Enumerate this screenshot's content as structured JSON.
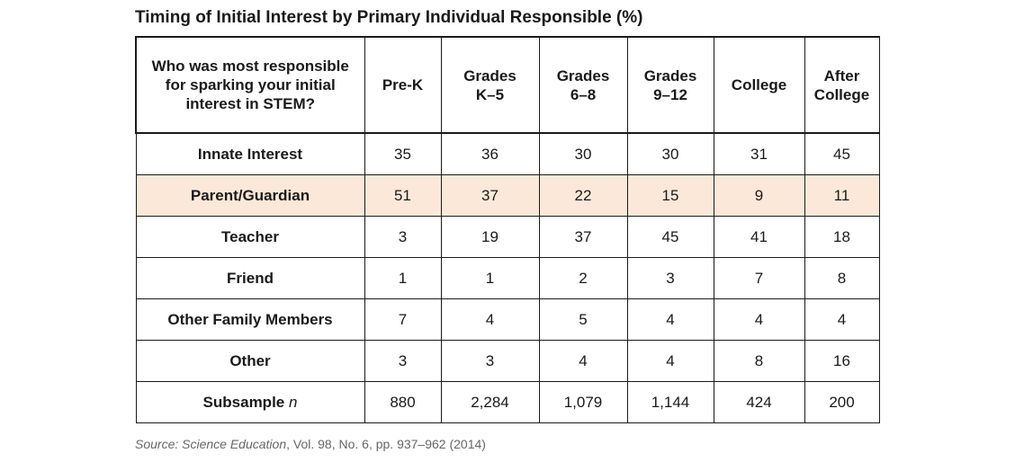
{
  "title": "Timing of Initial Interest by Primary Individual Responsible (%)",
  "colors": {
    "highlight_row": "#fce8d8",
    "border": "#1a1a1a"
  },
  "chart_data": {
    "type": "table",
    "title": "Timing of Initial Interest by Primary Individual Responsible (%)",
    "row_header": "Who was most responsible for sparking your initial interest in STEM?",
    "columns": [
      "Pre-K",
      "Grades\nK–5",
      "Grades\n6–8",
      "Grades\n9–12",
      "College",
      "After\nCollege"
    ],
    "highlighted_row": "Parent/Guardian",
    "rows": [
      {
        "label": "Innate Interest",
        "values": [
          "35",
          "36",
          "30",
          "30",
          "31",
          "45"
        ]
      },
      {
        "label": "Parent/Guardian",
        "values": [
          "51",
          "37",
          "22",
          "15",
          "9",
          "11"
        ]
      },
      {
        "label": "Teacher",
        "values": [
          "3",
          "19",
          "37",
          "45",
          "41",
          "18"
        ]
      },
      {
        "label": "Friend",
        "values": [
          "1",
          "1",
          "2",
          "3",
          "7",
          "8"
        ]
      },
      {
        "label": "Other Family Members",
        "values": [
          "7",
          "4",
          "5",
          "4",
          "4",
          "4"
        ]
      },
      {
        "label": "Other",
        "values": [
          "3",
          "3",
          "4",
          "4",
          "8",
          "16"
        ]
      }
    ],
    "subsample": {
      "label_prefix": "Subsample ",
      "label_italic": "n",
      "values": [
        "880",
        "2,284",
        "1,079",
        "1,144",
        "424",
        "200"
      ]
    }
  },
  "source": {
    "prefix": "Source: Science Education",
    "rest": ", Vol. 98, No. 6, pp. 937–962 (2014)"
  }
}
